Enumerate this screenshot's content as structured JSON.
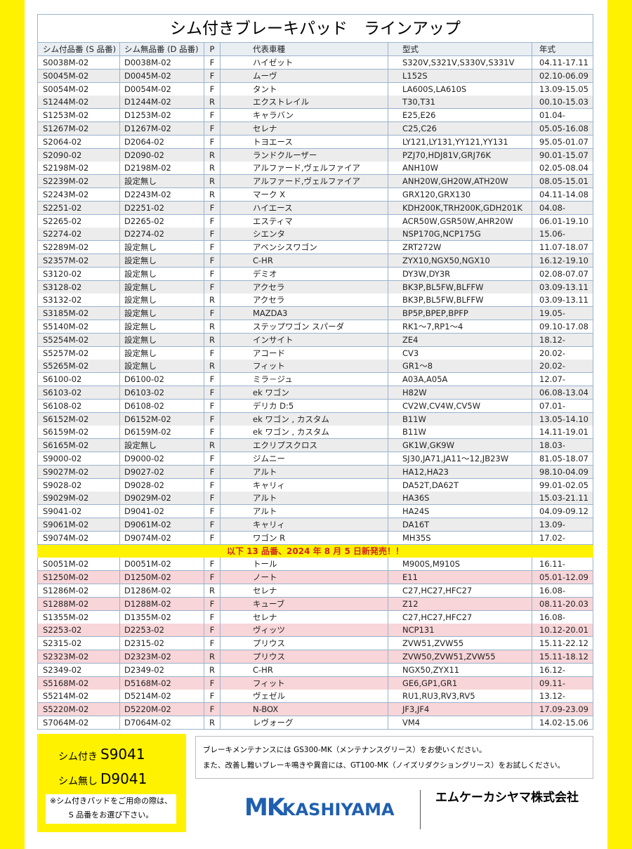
{
  "title": "シム付きブレーキパッド　ラインアップ",
  "header": [
    "シム付品番 (S 品番)",
    "シム無品番 (D 品番)",
    "P",
    "代表車種",
    "型式",
    "年式"
  ],
  "rows": [
    [
      "S0038M-02",
      "D0038M-02",
      "F",
      "ハイゼット",
      "S320V,S321V,S330V,S331V",
      "04.11-17.11"
    ],
    [
      "S0045M-02",
      "D0045M-02",
      "F",
      "ムーヴ",
      "L152S",
      "02.10-06.09"
    ],
    [
      "S0054M-02",
      "D0054M-02",
      "F",
      "タント",
      "LA600S,LA610S",
      "13.09-15.05"
    ],
    [
      "S1244M-02",
      "D1244M-02",
      "R",
      "エクストレイル",
      "T30,T31",
      "00.10-15.03"
    ],
    [
      "S1253M-02",
      "D1253M-02",
      "F",
      "キャラバン",
      "E25,E26",
      "01.04-"
    ],
    [
      "S1267M-02",
      "D1267M-02",
      "F",
      "セレナ",
      "C25,C26",
      "05.05-16.08"
    ],
    [
      "S2064-02",
      "D2064-02",
      "F",
      "トヨエース",
      "LY121,LY131,YY121,YY131",
      "95.05-01.07"
    ],
    [
      "S2090-02",
      "D2090-02",
      "R",
      "ランドクルーザー",
      "PZJ70,HDJ81V,GRJ76K",
      "90.01-15.07"
    ],
    [
      "S2198M-02",
      "D2198M-02",
      "R",
      "アルファード,ヴェルファイア",
      "ANH10W",
      "02.05-08.04"
    ],
    [
      "S2239M-02",
      "設定無し",
      "R",
      "アルファード,ヴェルファイア",
      "ANH20W,GH20W,ATH20W",
      "08.05-15.01"
    ],
    [
      "S2243M-02",
      "D2243M-02",
      "R",
      "マーク X",
      "GRX120,GRX130",
      "04.11-14.08"
    ],
    [
      "S2251-02",
      "D2251-02",
      "F",
      "ハイエース",
      "KDH200K,TRH200K,GDH201K",
      "04.08-"
    ],
    [
      "S2265-02",
      "D2265-02",
      "F",
      "エスティマ",
      "ACR50W,GSR50W,AHR20W",
      "06.01-19.10"
    ],
    [
      "S2274-02",
      "D2274-02",
      "F",
      "シエンタ",
      "NSP170G,NCP175G",
      "15.06-"
    ],
    [
      "S2289M-02",
      "設定無し",
      "F",
      "アベンシスワゴン",
      "ZRT272W",
      "11.07-18.07"
    ],
    [
      "S2357M-02",
      "設定無し",
      "F",
      "C-HR",
      "ZYX10,NGX50,NGX10",
      "16.12-19.10"
    ],
    [
      "S3120-02",
      "設定無し",
      "F",
      "デミオ",
      "DY3W,DY3R",
      "02.08-07.07"
    ],
    [
      "S3128-02",
      "設定無し",
      "F",
      "アクセラ",
      "BK3P,BL5FW,BLFFW",
      "03.09-13.11"
    ],
    [
      "S3132-02",
      "設定無し",
      "R",
      "アクセラ",
      "BK3P,BL5FW,BLFFW",
      "03.09-13.11"
    ],
    [
      "S3185M-02",
      "設定無し",
      "F",
      "MAZDA3",
      "BP5P,BPEP,BPFP",
      "19.05-"
    ],
    [
      "S5140M-02",
      "設定無し",
      "R",
      "ステップワゴン スパーダ",
      "RK1～7,RP1～4",
      "09.10-17.08"
    ],
    [
      "S5254M-02",
      "設定無し",
      "R",
      "インサイト",
      "ZE4",
      "18.12-"
    ],
    [
      "S5257M-02",
      "設定無し",
      "F",
      "アコード",
      "CV3",
      "20.02-"
    ],
    [
      "S5265M-02",
      "設定無し",
      "R",
      "フィット",
      "GR1～8",
      "20.02-"
    ],
    [
      "S6100-02",
      "D6100-02",
      "F",
      "ミラ－ジュ",
      "A03A,A05A",
      "12.07-"
    ],
    [
      "S6103-02",
      "D6103-02",
      "F",
      "ek ワゴン",
      "H82W",
      "06.08-13.04"
    ],
    [
      "S6108-02",
      "D6108-02",
      "F",
      "デリカ D:5",
      "CV2W,CV4W,CV5W",
      "07.01-"
    ],
    [
      "S6152M-02",
      "D6152M-02",
      "F",
      "ek ワゴン , カスタム",
      "B11W",
      "13.05-14.10"
    ],
    [
      "S6159M-02",
      "D6159M-02",
      "F",
      "ek ワゴン , カスタム",
      "B11W",
      "14.11-19.01"
    ],
    [
      "S6165M-02",
      "設定無し",
      "R",
      "エクリプスクロス",
      "GK1W,GK9W",
      "18.03-"
    ],
    [
      "S9000-02",
      "D9000-02",
      "F",
      "ジムニー",
      "SJ30,JA71,JA11～12,JB23W",
      "81.05-18.07"
    ],
    [
      "S9027M-02",
      "D9027-02",
      "F",
      "アルト",
      "HA12,HA23",
      "98.10-04.09"
    ],
    [
      "S9028-02",
      "D9028-02",
      "F",
      "キャリィ",
      "DA52T,DA62T",
      "99.01-02.05"
    ],
    [
      "S9029M-02",
      "D9029M-02",
      "F",
      "アルト",
      "HA36S",
      "15.03-21.11"
    ],
    [
      "S9041-02",
      "D9041-02",
      "F",
      "アルト",
      "HA24S",
      "04.09-09.12"
    ],
    [
      "S9061M-02",
      "D9061M-02",
      "F",
      "キャリィ",
      "DA16T",
      "13.09-"
    ],
    [
      "S9074M-02",
      "D9074M-02",
      "F",
      "ワゴン R",
      "MH35S",
      "17.02-"
    ]
  ],
  "banner": "以下 13 品番、2024 年 8 月 5 日新発売！！",
  "new_rows": [
    [
      "S0051M-02",
      "D0051M-02",
      "F",
      "トール",
      "M900S,M910S",
      "16.11-"
    ],
    [
      "S1250M-02",
      "D1250M-02",
      "F",
      "ノート",
      "E11",
      "05.01-12.09"
    ],
    [
      "S1286M-02",
      "D1286M-02",
      "R",
      "セレナ",
      "C27,HC27,HFC27",
      "16.08-"
    ],
    [
      "S1288M-02",
      "D1288M-02",
      "F",
      "キューブ",
      "Z12",
      "08.11-20.03"
    ],
    [
      "S1355M-02",
      "D1355M-02",
      "F",
      "セレナ",
      "C27,HC27,HFC27",
      "16.08-"
    ],
    [
      "S2253-02",
      "D2253-02",
      "F",
      "ヴィッツ",
      "NCP131",
      "10.12-20.01"
    ],
    [
      "S2315-02",
      "D2315-02",
      "F",
      "プリウス",
      "ZVW51,ZVW55",
      "15.11-22.12"
    ],
    [
      "S2323M-02",
      "D2323M-02",
      "R",
      "プリウス",
      "ZVW50,ZVW51,ZVW55",
      "15.11-18.12"
    ],
    [
      "S2349-02",
      "D2349-02",
      "R",
      "C-HR",
      "NGX50,ZYX11",
      "16.12-"
    ],
    [
      "S5168M-02",
      "D5168M-02",
      "F",
      "フィット",
      "GE6,GP1,GR1",
      "09.11-"
    ],
    [
      "S5214M-02",
      "D5214M-02",
      "F",
      "ヴェゼル",
      "RU1,RU3,RV3,RV5",
      "13.12-"
    ],
    [
      "S5220M-02",
      "D5220M-02",
      "F",
      "N-BOX",
      "JF3,JF4",
      "17.09-23.09"
    ],
    [
      "S7064M-02",
      "D7064M-02",
      "R",
      "レヴォーグ",
      "VM4",
      "14.02-15.06"
    ]
  ],
  "example": {
    "with_label": "シム付き",
    "with_code": "S9041",
    "without_label": "シム無し",
    "without_code": "D9041",
    "note": [
      "※シム付きパッドをご用命の際は、",
      "S 品番をお選び下さい。"
    ]
  },
  "notice": [
    "ブレーキメンテナンスには GS300-MK（メンテナンスグリース）をお使いください。",
    "また、改善し難いブレーキ鳴きや異音には、GT100-MK（ノイズリダクショングリース）をお試しください。"
  ],
  "logo": {
    "mark": "MK",
    "name": "KASHIYAMA"
  },
  "company": "エムケーカシヤマ株式会社"
}
